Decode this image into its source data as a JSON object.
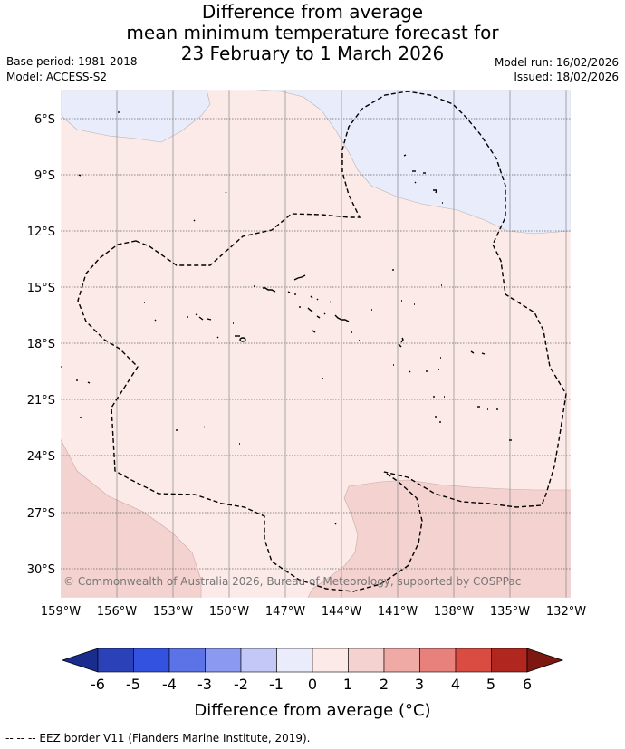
{
  "title": {
    "line1": "Difference from average",
    "line2": "mean minimum temperature forecast for",
    "line3": "23 February to 1 March 2026"
  },
  "meta": {
    "base_period": "Base period: 1981-2018",
    "model": "Model: ACCESS-S2",
    "model_run": "Model run: 16/02/2026",
    "issued": "Issued: 18/02/2026"
  },
  "map": {
    "lat_ticks": [
      "6°S",
      "9°S",
      "12°S",
      "15°S",
      "18°S",
      "21°S",
      "24°S",
      "27°S",
      "30°S"
    ],
    "lon_ticks": [
      "159°W",
      "156°W",
      "153°W",
      "150°W",
      "147°W",
      "144°W",
      "141°W",
      "138°W",
      "135°W",
      "132°W"
    ],
    "copyright": "© Commonwealth of Australia 2026, Bureau of Meteorology, supported by COSPPac",
    "colors": {
      "band_0_1": "#fbeae8",
      "band_1_2": "#f4d2d0",
      "band_m1_0": "#e8ecfb"
    }
  },
  "colorbar": {
    "labels": [
      "-6",
      "-5",
      "-4",
      "-3",
      "-2",
      "-1",
      "0",
      "1",
      "2",
      "3",
      "4",
      "5",
      "6"
    ],
    "title": "Difference from average (°C)",
    "colors": [
      "#1a2d8c",
      "#2a41b8",
      "#3452e0",
      "#5b73e6",
      "#8b9af0",
      "#c3c8f6",
      "#eaecfb",
      "#fbeae8",
      "#f4d2d0",
      "#efaaa6",
      "#e8817b",
      "#da4b42",
      "#b1271f",
      "#7d1712"
    ]
  },
  "footnote": "-- -- -- EEZ border V11 (Flanders Marine Institute, 2019)."
}
